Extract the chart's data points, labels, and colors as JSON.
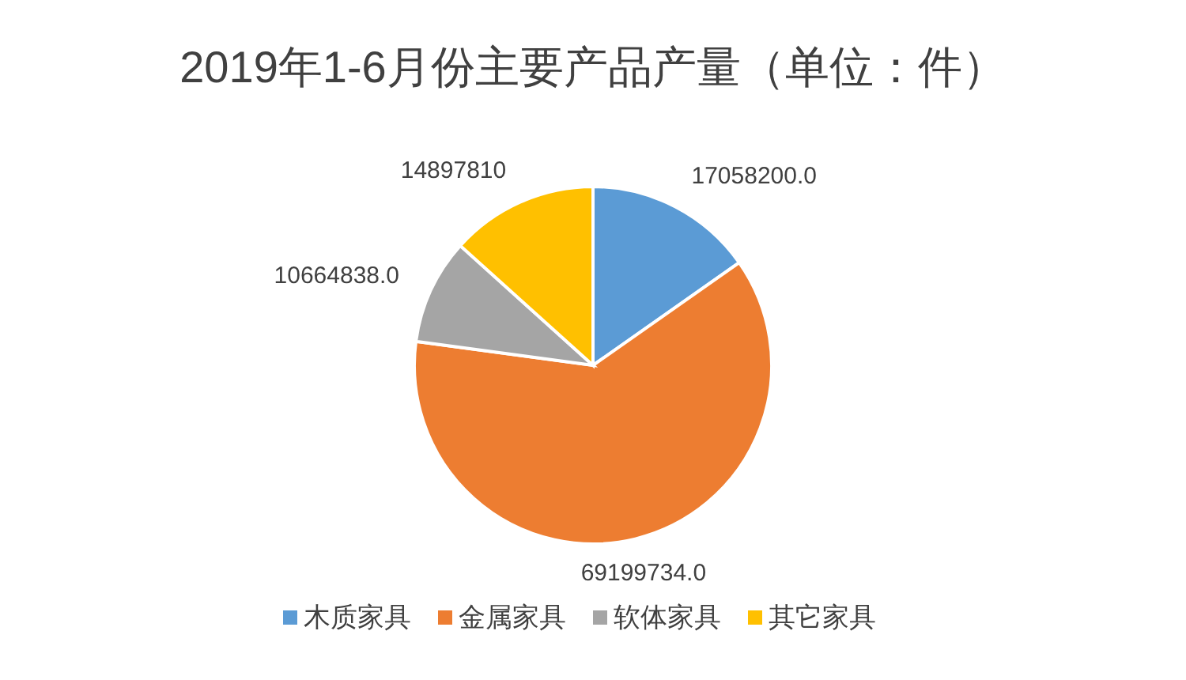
{
  "chart_data": {
    "type": "pie",
    "title": "2019年1-6月份主要产品产量（单位：件）",
    "categories": [
      "木质家具",
      "金属家具",
      "软体家具",
      "其它家具"
    ],
    "values": [
      17058200.0,
      69199734.0,
      10664838.0,
      14897810
    ],
    "value_labels": [
      "17058200.0",
      "69199734.0",
      "10664838.0",
      "14897810"
    ],
    "colors": [
      "#5b9bd5",
      "#ed7d31",
      "#a5a5a5",
      "#ffc000"
    ],
    "legend": "bottom"
  }
}
